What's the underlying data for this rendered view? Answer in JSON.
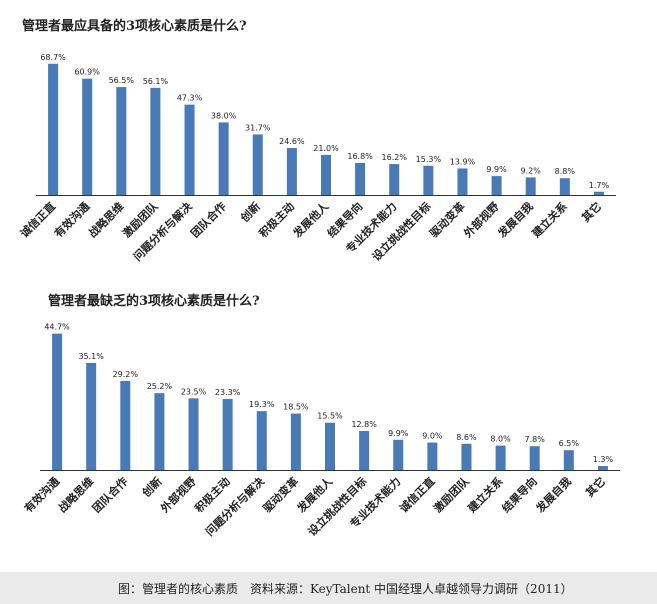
{
  "chart_data": [
    {
      "type": "bar",
      "title": "管理者最应具备的3项核心素质是什么?",
      "categories": [
        "诚信正直",
        "有效沟通",
        "战略思维",
        "激励团队",
        "问题分析与解决",
        "团队合作",
        "创新",
        "积极主动",
        "发展他人",
        "结果导向",
        "专业技术能力",
        "设立挑战性目标",
        "驱动变革",
        "外部视野",
        "发展自我",
        "建立关系",
        "其它"
      ],
      "value_labels": [
        "68.7%",
        "60.9%",
        "56.5%",
        "56.1%",
        "47.3%",
        "38.0%",
        "31.7%",
        "24.6%",
        "21.0%",
        "16.8%",
        "16.2%",
        "15.3%",
        "13.9%",
        "9.9%",
        "9.2%",
        "8.8%",
        "1.7%"
      ],
      "values": [
        68.7,
        60.9,
        56.5,
        56.1,
        47.3,
        38.0,
        31.7,
        24.6,
        21.0,
        16.8,
        16.2,
        15.3,
        13.9,
        9.9,
        9.2,
        8.8,
        1.7
      ],
      "unit": "%",
      "ylim": [
        0,
        70
      ],
      "bar_color": "#4a7ab5",
      "grid": false
    },
    {
      "type": "bar",
      "title": "管理者最缺乏的3项核心素质是什么?",
      "categories": [
        "有效沟通",
        "战略思维",
        "团队合作",
        "创新",
        "外部视野",
        "积极主动",
        "问题分析与解决",
        "驱动变革",
        "发展他人",
        "设立挑战性目标",
        "专业技术能力",
        "诚信正直",
        "激励团队",
        "建立关系",
        "结果导向",
        "发展自我",
        "其它"
      ],
      "value_labels": [
        "44.7%",
        "35.1%",
        "29.2%",
        "25.2%",
        "23.5%",
        "23.3%",
        "19.3%",
        "18.5%",
        "15.5%",
        "12.8%",
        "9.9%",
        "9.0%",
        "8.6%",
        "8.0%",
        "7.8%",
        "6.5%",
        "1.3%"
      ],
      "values": [
        44.7,
        35.1,
        29.2,
        25.2,
        23.5,
        23.3,
        19.3,
        18.5,
        15.5,
        12.8,
        9.9,
        9.0,
        8.6,
        8.0,
        7.8,
        6.5,
        1.3
      ],
      "unit": "%",
      "ylim": [
        0,
        46
      ],
      "bar_color": "#4a7ab5",
      "grid": false
    }
  ],
  "caption": "图：管理者的核心素质　资料来源：KeyTalent 中国经理人卓越领导力调研（2011）"
}
